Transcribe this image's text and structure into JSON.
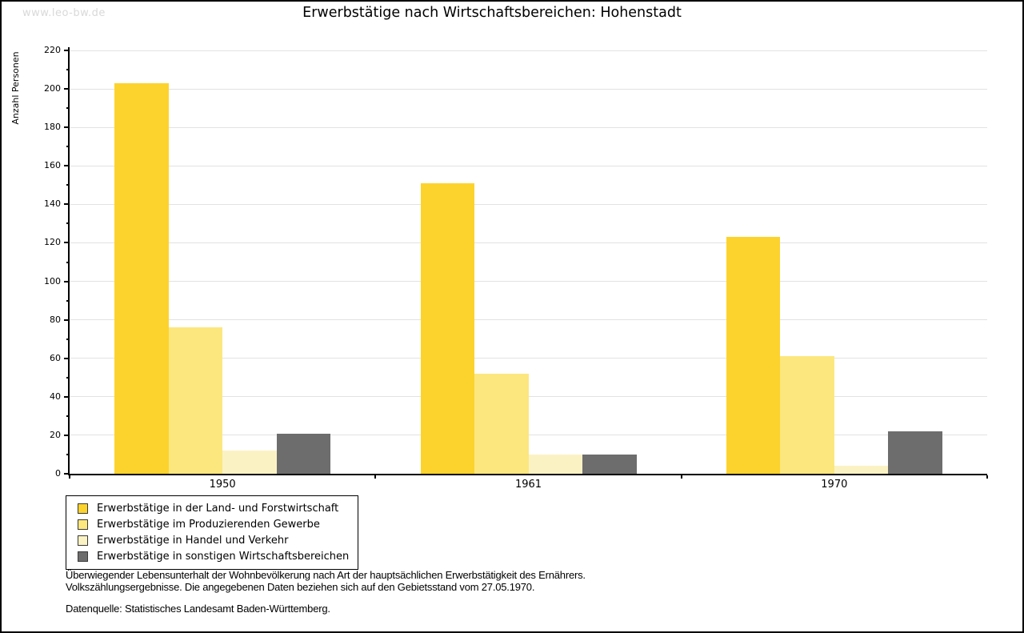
{
  "watermark": "www.leo-bw.de",
  "chart_data": {
    "type": "bar",
    "title": "Erwerbstätige nach Wirtschaftsbereichen: Hohenstadt",
    "ylabel": "Anzahl Personen",
    "xlabel": "",
    "categories": [
      "1950",
      "1961",
      "1970"
    ],
    "series": [
      {
        "name": "Erwerbstätige in der Land- und Forstwirtschaft",
        "color": "#fcd32d",
        "values": [
          203,
          151,
          123
        ]
      },
      {
        "name": "Erwerbstätige im Produzierenden Gewerbe",
        "color": "#fce77e",
        "values": [
          76,
          52,
          61
        ]
      },
      {
        "name": "Erwerbstätige in Handel und Verkehr",
        "color": "#fbf2c4",
        "values": [
          12,
          10,
          4
        ]
      },
      {
        "name": "Erwerbstätige in sonstigen Wirtschaftsbereichen",
        "color": "#6d6d6d",
        "values": [
          21,
          10,
          22
        ]
      }
    ],
    "ylim": [
      0,
      220
    ],
    "ytick_major": 20,
    "ytick_minor": 10,
    "grid": "horizontal-major-on",
    "gridline_color": "#e2e2e2",
    "legend_position": "bottom-left"
  },
  "footer": {
    "line1": "Überwiegender Lebensunterhalt der Wohnbevölkerung nach Art der hauptsächlichen Erwerbstätigkeit des Ernährers.",
    "line2": "Volkszählungsergebnisse. Die angegebenen Daten beziehen sich auf den Gebietsstand vom 27.05.1970.",
    "source": "Datenquelle: Statistisches Landesamt Baden-Württemberg."
  }
}
